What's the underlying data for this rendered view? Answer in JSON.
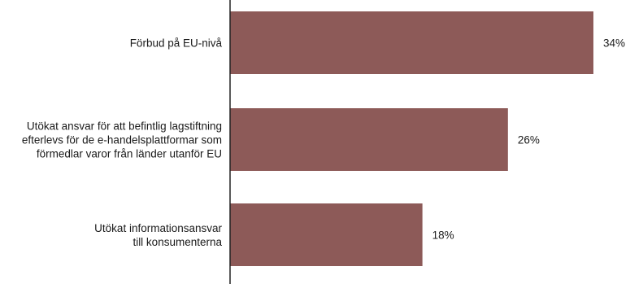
{
  "chart_data": {
    "type": "bar",
    "orientation": "horizontal",
    "categories": [
      [
        "Förbud på EU-nivå"
      ],
      [
        "Utökat ansvar för att befintlig lagstiftning",
        "efterlevs för de e-handelsplattformar som",
        "förmedlar varor från länder utanför EU"
      ],
      [
        "Utökat informationsansvar",
        "till konsumenterna"
      ]
    ],
    "values": [
      34,
      26,
      18
    ],
    "value_labels": [
      "34%",
      "26%",
      "18%"
    ],
    "bar_color": "#8d5a58",
    "axis_color": "#222222",
    "xlim": [
      0,
      40
    ],
    "grid": false,
    "legend": "none",
    "title": "",
    "xlabel": "",
    "ylabel": ""
  }
}
